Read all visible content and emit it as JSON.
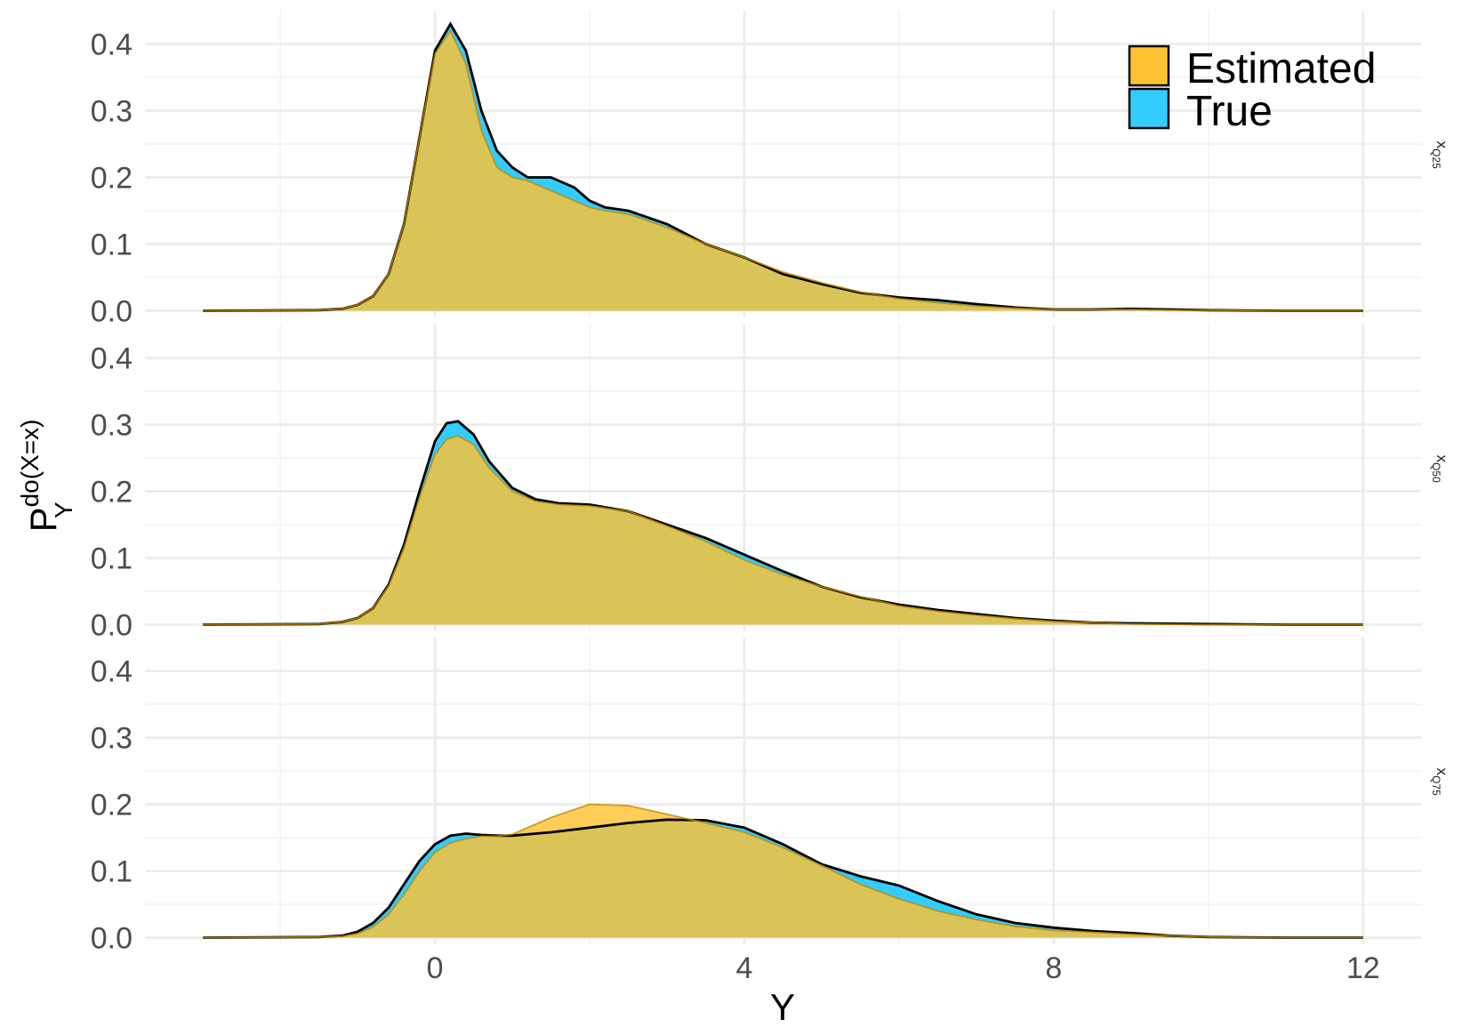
{
  "chart_data": {
    "type": "area",
    "xlabel": "Y",
    "ylabel": {
      "main": "P",
      "superscript": "do(X=x)",
      "subscript": "Y"
    },
    "xlim": [
      -3.75,
      12.75
    ],
    "ylim": [
      -0.01,
      0.45
    ],
    "x_ticks": [
      0,
      4,
      8,
      12
    ],
    "x_tick_labels": [
      "0",
      "4",
      "8",
      "12"
    ],
    "y_ticks": [
      0.0,
      0.1,
      0.2,
      0.3,
      0.4
    ],
    "y_tick_labels": [
      "0.0",
      "0.1",
      "0.2",
      "0.3",
      "0.4"
    ],
    "grid": true,
    "legend": {
      "position": "top-right",
      "entries": [
        {
          "label": "Estimated",
          "color": "#FFC233"
        },
        {
          "label": "True",
          "color": "#33CCFF"
        }
      ]
    },
    "colors": {
      "estimated": "#FFC233",
      "true": "#33CCFF",
      "overlap": "#D4BE3F",
      "outline": "#000000"
    },
    "panels": [
      {
        "strip": {
          "main": "x",
          "sub": "Q25"
        },
        "series": [
          {
            "name": "True",
            "x": [
              -3,
              -1.5,
              -1.2,
              -1,
              -0.8,
              -0.6,
              -0.4,
              -0.2,
              0,
              0.2,
              0.4,
              0.6,
              0.8,
              1.0,
              1.2,
              1.5,
              1.8,
              2.0,
              2.2,
              2.5,
              3.0,
              3.5,
              4.0,
              4.5,
              5.0,
              5.5,
              6.0,
              6.5,
              7.0,
              7.5,
              8.0,
              8.5,
              9.0,
              9.5,
              10,
              11,
              12
            ],
            "y": [
              0,
              0.001,
              0.003,
              0.009,
              0.022,
              0.055,
              0.13,
              0.26,
              0.39,
              0.43,
              0.39,
              0.3,
              0.24,
              0.215,
              0.2,
              0.2,
              0.185,
              0.165,
              0.155,
              0.15,
              0.13,
              0.1,
              0.08,
              0.055,
              0.04,
              0.027,
              0.02,
              0.016,
              0.01,
              0.005,
              0.002,
              0.002,
              0.003,
              0.002,
              0.001,
              0,
              0
            ]
          },
          {
            "name": "Estimated",
            "x": [
              -3,
              -1.5,
              -1.2,
              -1,
              -0.8,
              -0.6,
              -0.4,
              -0.2,
              0,
              0.2,
              0.4,
              0.6,
              0.8,
              1.0,
              1.2,
              1.5,
              1.8,
              2.0,
              2.2,
              2.5,
              3.0,
              3.5,
              4.0,
              4.5,
              5.0,
              5.5,
              6.0,
              6.5,
              7.0,
              7.5,
              8.0,
              8.5,
              9.0,
              9.5,
              10,
              11,
              12
            ],
            "y": [
              0,
              0.001,
              0.003,
              0.009,
              0.022,
              0.055,
              0.13,
              0.26,
              0.385,
              0.42,
              0.37,
              0.27,
              0.215,
              0.2,
              0.195,
              0.18,
              0.165,
              0.155,
              0.15,
              0.145,
              0.125,
              0.1,
              0.08,
              0.058,
              0.042,
              0.028,
              0.018,
              0.012,
              0.007,
              0.004,
              0.002,
              0.002,
              0.002,
              0.001,
              0.001,
              0,
              0
            ]
          }
        ]
      },
      {
        "strip": {
          "main": "x",
          "sub": "Q50"
        },
        "series": [
          {
            "name": "True",
            "x": [
              -3,
              -1.5,
              -1.2,
              -1,
              -0.8,
              -0.6,
              -0.4,
              -0.2,
              0,
              0.15,
              0.3,
              0.5,
              0.7,
              1.0,
              1.3,
              1.6,
              2.0,
              2.5,
              3.0,
              3.5,
              4.0,
              4.5,
              5.0,
              5.5,
              6.0,
              6.5,
              7.0,
              7.5,
              8.0,
              8.5,
              9.0,
              10,
              11,
              12
            ],
            "y": [
              0,
              0.001,
              0.004,
              0.01,
              0.025,
              0.06,
              0.12,
              0.2,
              0.275,
              0.302,
              0.305,
              0.285,
              0.245,
              0.205,
              0.188,
              0.182,
              0.18,
              0.17,
              0.15,
              0.13,
              0.105,
              0.08,
              0.057,
              0.041,
              0.03,
              0.022,
              0.016,
              0.01,
              0.006,
              0.003,
              0.002,
              0.001,
              0,
              0
            ]
          },
          {
            "name": "Estimated",
            "x": [
              -3,
              -1.5,
              -1.2,
              -1,
              -0.8,
              -0.6,
              -0.4,
              -0.2,
              0,
              0.15,
              0.3,
              0.5,
              0.7,
              1.0,
              1.3,
              1.6,
              2.0,
              2.5,
              3.0,
              3.5,
              4.0,
              4.5,
              5.0,
              5.5,
              6.0,
              6.5,
              7.0,
              7.5,
              8.0,
              8.5,
              9.0,
              10,
              11,
              12
            ],
            "y": [
              0,
              0.001,
              0.004,
              0.01,
              0.025,
              0.058,
              0.115,
              0.19,
              0.255,
              0.278,
              0.283,
              0.27,
              0.235,
              0.2,
              0.185,
              0.18,
              0.178,
              0.17,
              0.148,
              0.125,
              0.097,
              0.075,
              0.057,
              0.042,
              0.028,
              0.02,
              0.014,
              0.009,
              0.005,
              0.003,
              0.001,
              0,
              0,
              0
            ]
          }
        ]
      },
      {
        "strip": {
          "main": "x",
          "sub": "Q75"
        },
        "series": [
          {
            "name": "True",
            "x": [
              -3,
              -1.5,
              -1.2,
              -1,
              -0.8,
              -0.6,
              -0.4,
              -0.2,
              0,
              0.2,
              0.4,
              0.6,
              0.8,
              1.0,
              1.5,
              2.0,
              2.5,
              3.0,
              3.5,
              4.0,
              4.5,
              5.0,
              5.5,
              6.0,
              6.5,
              7.0,
              7.5,
              8.0,
              8.5,
              9.0,
              9.5,
              10,
              11,
              12
            ],
            "y": [
              0,
              0.001,
              0.003,
              0.009,
              0.022,
              0.045,
              0.08,
              0.115,
              0.14,
              0.153,
              0.156,
              0.154,
              0.153,
              0.153,
              0.158,
              0.165,
              0.172,
              0.177,
              0.176,
              0.165,
              0.14,
              0.11,
              0.092,
              0.078,
              0.055,
              0.035,
              0.022,
              0.015,
              0.01,
              0.007,
              0.003,
              0.001,
              0,
              0
            ]
          },
          {
            "name": "Estimated",
            "x": [
              -3,
              -1.5,
              -1.2,
              -1,
              -0.8,
              -0.6,
              -0.4,
              -0.2,
              0,
              0.2,
              0.4,
              0.6,
              0.8,
              1.0,
              1.5,
              2.0,
              2.5,
              3.0,
              3.5,
              4.0,
              4.5,
              5.0,
              5.5,
              6.0,
              6.5,
              7.0,
              7.5,
              8.0,
              8.5,
              9.0,
              9.5,
              10,
              11,
              12
            ],
            "y": [
              0,
              0.001,
              0.002,
              0.006,
              0.016,
              0.035,
              0.065,
              0.1,
              0.128,
              0.142,
              0.148,
              0.152,
              0.152,
              0.155,
              0.18,
              0.2,
              0.198,
              0.185,
              0.172,
              0.158,
              0.135,
              0.108,
              0.08,
              0.058,
              0.04,
              0.027,
              0.017,
              0.011,
              0.008,
              0.005,
              0.003,
              0.001,
              0,
              0
            ]
          }
        ]
      }
    ]
  }
}
